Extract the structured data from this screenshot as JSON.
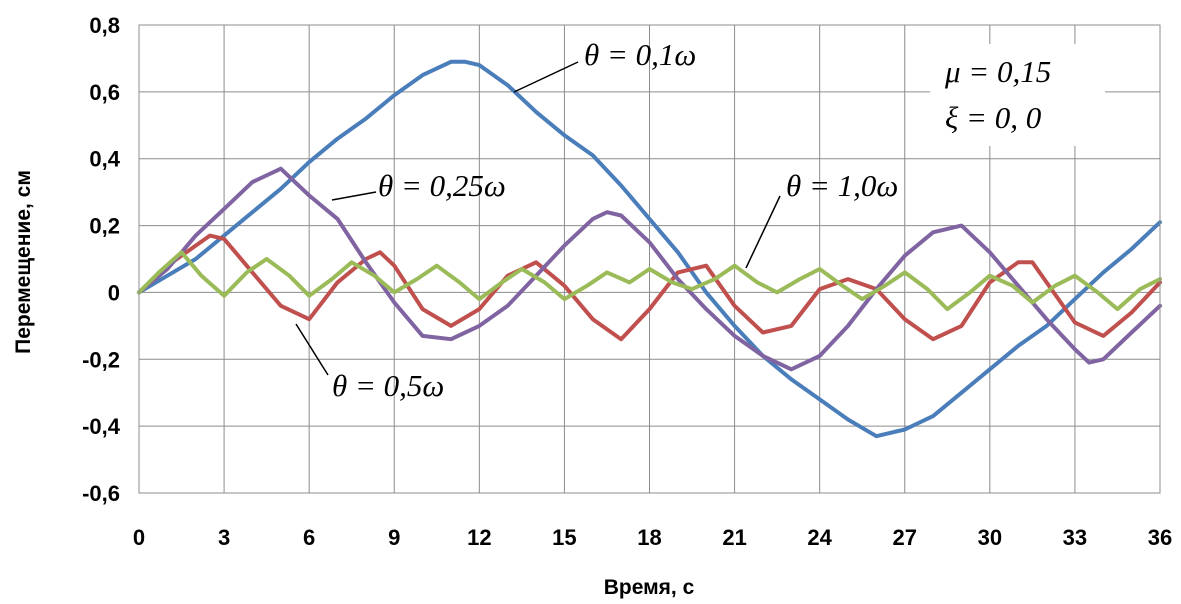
{
  "chart_data": {
    "type": "line",
    "title": "",
    "xlabel": "Время, с",
    "ylabel": "Перемещение, см",
    "xlim": [
      0,
      36
    ],
    "ylim": [
      -0.6,
      0.8
    ],
    "xticks": [
      0,
      3,
      6,
      9,
      12,
      15,
      18,
      21,
      24,
      27,
      30,
      33,
      36
    ],
    "yticks": [
      -0.6,
      -0.4,
      -0.2,
      0,
      0.2,
      0.4,
      0.6,
      0.8
    ],
    "xtick_labels": [
      "0",
      "3",
      "6",
      "9",
      "12",
      "15",
      "18",
      "21",
      "24",
      "27",
      "30",
      "33",
      "36"
    ],
    "ytick_labels": [
      "-0,6",
      "-0,4",
      "-0,2",
      "0",
      "0,2",
      "0,4",
      "0,6",
      "0,8"
    ],
    "grid": true,
    "legend": "none",
    "series": [
      {
        "label": "θ = 0,1ω",
        "color": "#4a7ebb",
        "x": [
          0,
          1,
          2,
          3,
          4,
          5,
          6,
          7,
          8,
          9,
          10,
          11,
          11.5,
          12,
          13,
          14,
          15,
          16,
          17,
          18,
          19,
          20,
          21,
          22,
          23,
          24,
          25,
          26,
          27,
          28,
          29,
          30,
          31,
          32,
          33,
          34,
          35,
          36
        ],
        "y": [
          0,
          0.05,
          0.1,
          0.17,
          0.24,
          0.31,
          0.39,
          0.46,
          0.52,
          0.59,
          0.65,
          0.69,
          0.69,
          0.68,
          0.62,
          0.54,
          0.47,
          0.41,
          0.32,
          0.22,
          0.12,
          0.0,
          -0.1,
          -0.19,
          -0.26,
          -0.32,
          -0.38,
          -0.43,
          -0.41,
          -0.37,
          -0.3,
          -0.23,
          -0.16,
          -0.1,
          -0.02,
          0.06,
          0.13,
          0.21
        ]
      },
      {
        "label": "θ = 0,25ω",
        "color": "#8064a2",
        "x": [
          0,
          1,
          2,
          3,
          4,
          5,
          6,
          7,
          8,
          9,
          10,
          11,
          12,
          13,
          14,
          15,
          16,
          16.5,
          17,
          18,
          19,
          20,
          21,
          22,
          23,
          24,
          25,
          26,
          27,
          28,
          29,
          30,
          31,
          32,
          33,
          33.5,
          34,
          35,
          36
        ],
        "y": [
          0,
          0.07,
          0.17,
          0.25,
          0.33,
          0.37,
          0.29,
          0.22,
          0.09,
          -0.03,
          -0.13,
          -0.14,
          -0.1,
          -0.04,
          0.05,
          0.14,
          0.22,
          0.24,
          0.23,
          0.15,
          0.04,
          -0.05,
          -0.13,
          -0.19,
          -0.23,
          -0.19,
          -0.1,
          0.01,
          0.11,
          0.18,
          0.2,
          0.12,
          0.02,
          -0.08,
          -0.17,
          -0.21,
          -0.2,
          -0.12,
          -0.04
        ]
      },
      {
        "label": "θ = 0,5ω",
        "color": "#c0504d",
        "x": [
          0,
          1,
          2,
          2.5,
          3,
          4,
          5,
          6,
          7,
          8,
          8.5,
          9,
          10,
          11,
          12,
          13,
          14,
          15,
          16,
          17,
          18,
          19,
          20,
          21,
          22,
          23,
          24,
          25,
          26,
          27,
          28,
          29,
          30,
          31,
          31.5,
          32,
          33,
          34,
          35,
          36
        ],
        "y": [
          0,
          0.08,
          0.14,
          0.17,
          0.16,
          0.06,
          -0.04,
          -0.08,
          0.03,
          0.1,
          0.12,
          0.08,
          -0.05,
          -0.1,
          -0.05,
          0.05,
          0.09,
          0.02,
          -0.08,
          -0.14,
          -0.05,
          0.06,
          0.08,
          -0.04,
          -0.12,
          -0.1,
          0.01,
          0.04,
          0.01,
          -0.08,
          -0.14,
          -0.1,
          0.03,
          0.09,
          0.09,
          0.03,
          -0.09,
          -0.13,
          -0.06,
          0.03
        ]
      },
      {
        "label": "θ = 1,0ω",
        "color": "#9bbb59",
        "x": [
          0,
          0.7,
          1.5,
          2.2,
          3,
          3.8,
          4.5,
          5.3,
          6,
          6.8,
          7.5,
          8.3,
          9,
          9.8,
          10.5,
          11.3,
          12,
          12.8,
          13.5,
          14.3,
          15,
          15.8,
          16.5,
          17.3,
          18,
          18.8,
          19.5,
          20.3,
          21,
          21.8,
          22.5,
          23.3,
          24,
          24.8,
          25.5,
          26.3,
          27,
          27.8,
          28.5,
          29.3,
          30,
          30.8,
          31.5,
          32.3,
          33,
          33.8,
          34.5,
          35.3,
          36
        ],
        "y": [
          0,
          0.06,
          0.12,
          0.05,
          -0.01,
          0.06,
          0.1,
          0.05,
          -0.01,
          0.04,
          0.09,
          0.05,
          0.0,
          0.04,
          0.08,
          0.03,
          -0.02,
          0.03,
          0.07,
          0.03,
          -0.02,
          0.02,
          0.06,
          0.03,
          0.07,
          0.03,
          0.01,
          0.04,
          0.08,
          0.03,
          0.0,
          0.04,
          0.07,
          0.02,
          -0.02,
          0.02,
          0.06,
          0.01,
          -0.05,
          0.0,
          0.05,
          0.02,
          -0.03,
          0.02,
          0.05,
          0.0,
          -0.05,
          0.01,
          0.04
        ]
      }
    ],
    "annotations": [
      {
        "text": "θ = 0,1ω",
        "series": 0
      },
      {
        "text": "θ = 0,25ω",
        "series": 1
      },
      {
        "text": "θ = 0,5ω",
        "series": 2
      },
      {
        "text": "θ = 1,0ω",
        "series": 3
      },
      {
        "text": "μ = 0,15"
      },
      {
        "text": "ξ = 0, 0"
      }
    ]
  }
}
